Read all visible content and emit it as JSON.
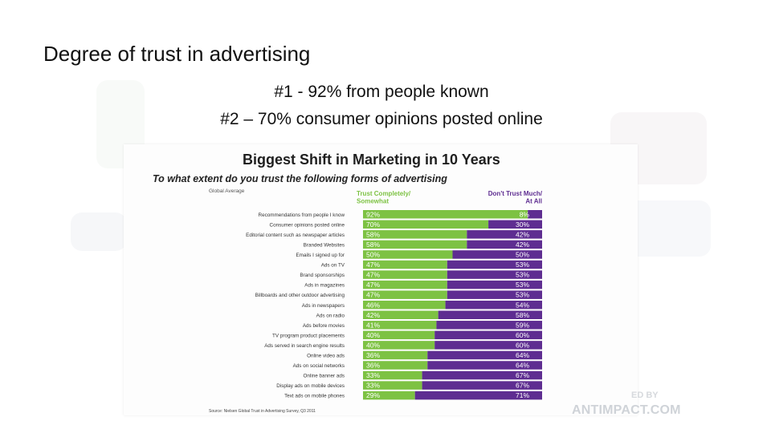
{
  "slide": {
    "title": "Degree of trust in advertising",
    "line1": "#1 - 92% from people known",
    "line2": "#2 – 70% consumer opinions posted online"
  },
  "chart_data": {
    "type": "bar",
    "title": "Biggest Shift in Marketing in 10 Years",
    "subtitle": "To what extent do you trust the following forms of advertising",
    "group_label": "Global Average",
    "colors": {
      "trust": "#7dc243",
      "distrust": "#5e2d91"
    },
    "categories": [
      "Recommendations from people I know",
      "Consumer opinions posted online",
      "Editorial content such as newspaper articles",
      "Branded Websites",
      "Emails I signed up for",
      "Ads on TV",
      "Brand sponsorships",
      "Ads in magazines",
      "Billboards and other outdoor advertising",
      "Ads in newspapers",
      "Ads on radio",
      "Ads before movies",
      "TV program product placements",
      "Ads served in search engine results",
      "Online video ads",
      "Ads on social networks",
      "Online banner ads",
      "Display ads on mobile devices",
      "Text ads on mobile phones"
    ],
    "series": [
      {
        "name": "Trust Completely/ Somewhat",
        "values": [
          92,
          70,
          58,
          58,
          50,
          47,
          47,
          47,
          47,
          46,
          42,
          41,
          40,
          40,
          36,
          36,
          33,
          33,
          29
        ]
      },
      {
        "name": "Don't Trust Much/ At All",
        "values": [
          8,
          30,
          42,
          42,
          50,
          53,
          53,
          53,
          53,
          54,
          58,
          59,
          60,
          60,
          64,
          64,
          67,
          67,
          71
        ]
      }
    ],
    "source": "Source: Nielsen Global Trust in Advertising Survey, Q3 2011"
  },
  "watermark": {
    "line1": "ED BY",
    "line2": "ANTIMPACT.COM"
  }
}
